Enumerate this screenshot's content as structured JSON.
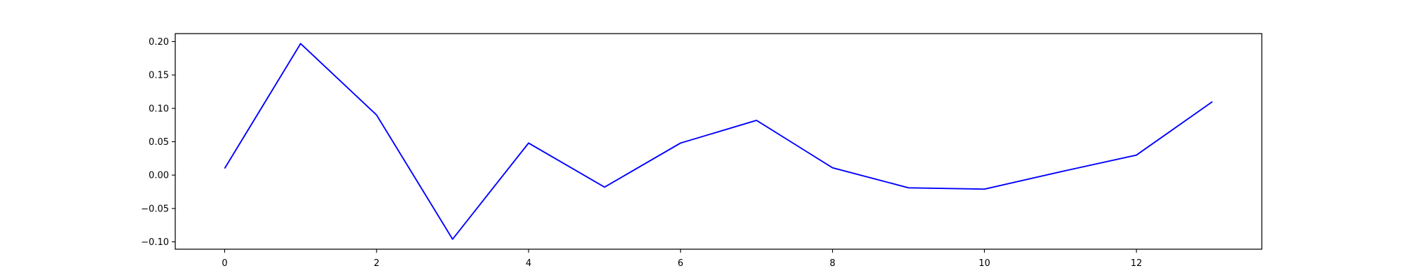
{
  "chart_data": {
    "type": "line",
    "title": "",
    "xlabel": "",
    "ylabel": "",
    "x": [
      0,
      1,
      2,
      3,
      4,
      5,
      6,
      7,
      8,
      9,
      10,
      11,
      12,
      13
    ],
    "series": [
      {
        "values": [
          0.01,
          0.197,
          0.09,
          -0.096,
          0.048,
          -0.018,
          0.048,
          0.082,
          0.011,
          -0.019,
          -0.021,
          0.005,
          0.03,
          0.11
        ],
        "color": "#0000ff"
      }
    ],
    "xlim": [
      -0.65,
      13.65
    ],
    "ylim": [
      -0.111,
      0.212
    ],
    "xticks": [
      0,
      2,
      4,
      6,
      8,
      10,
      12
    ],
    "xtick_labels": [
      "0",
      "2",
      "4",
      "6",
      "8",
      "10",
      "12"
    ],
    "yticks": [
      -0.1,
      -0.05,
      0.0,
      0.05,
      0.1,
      0.15,
      0.2
    ],
    "ytick_labels": [
      "−0.10",
      "−0.05",
      "0.00",
      "0.05",
      "0.10",
      "0.15",
      "0.20"
    ],
    "grid": false,
    "legend": "none"
  }
}
